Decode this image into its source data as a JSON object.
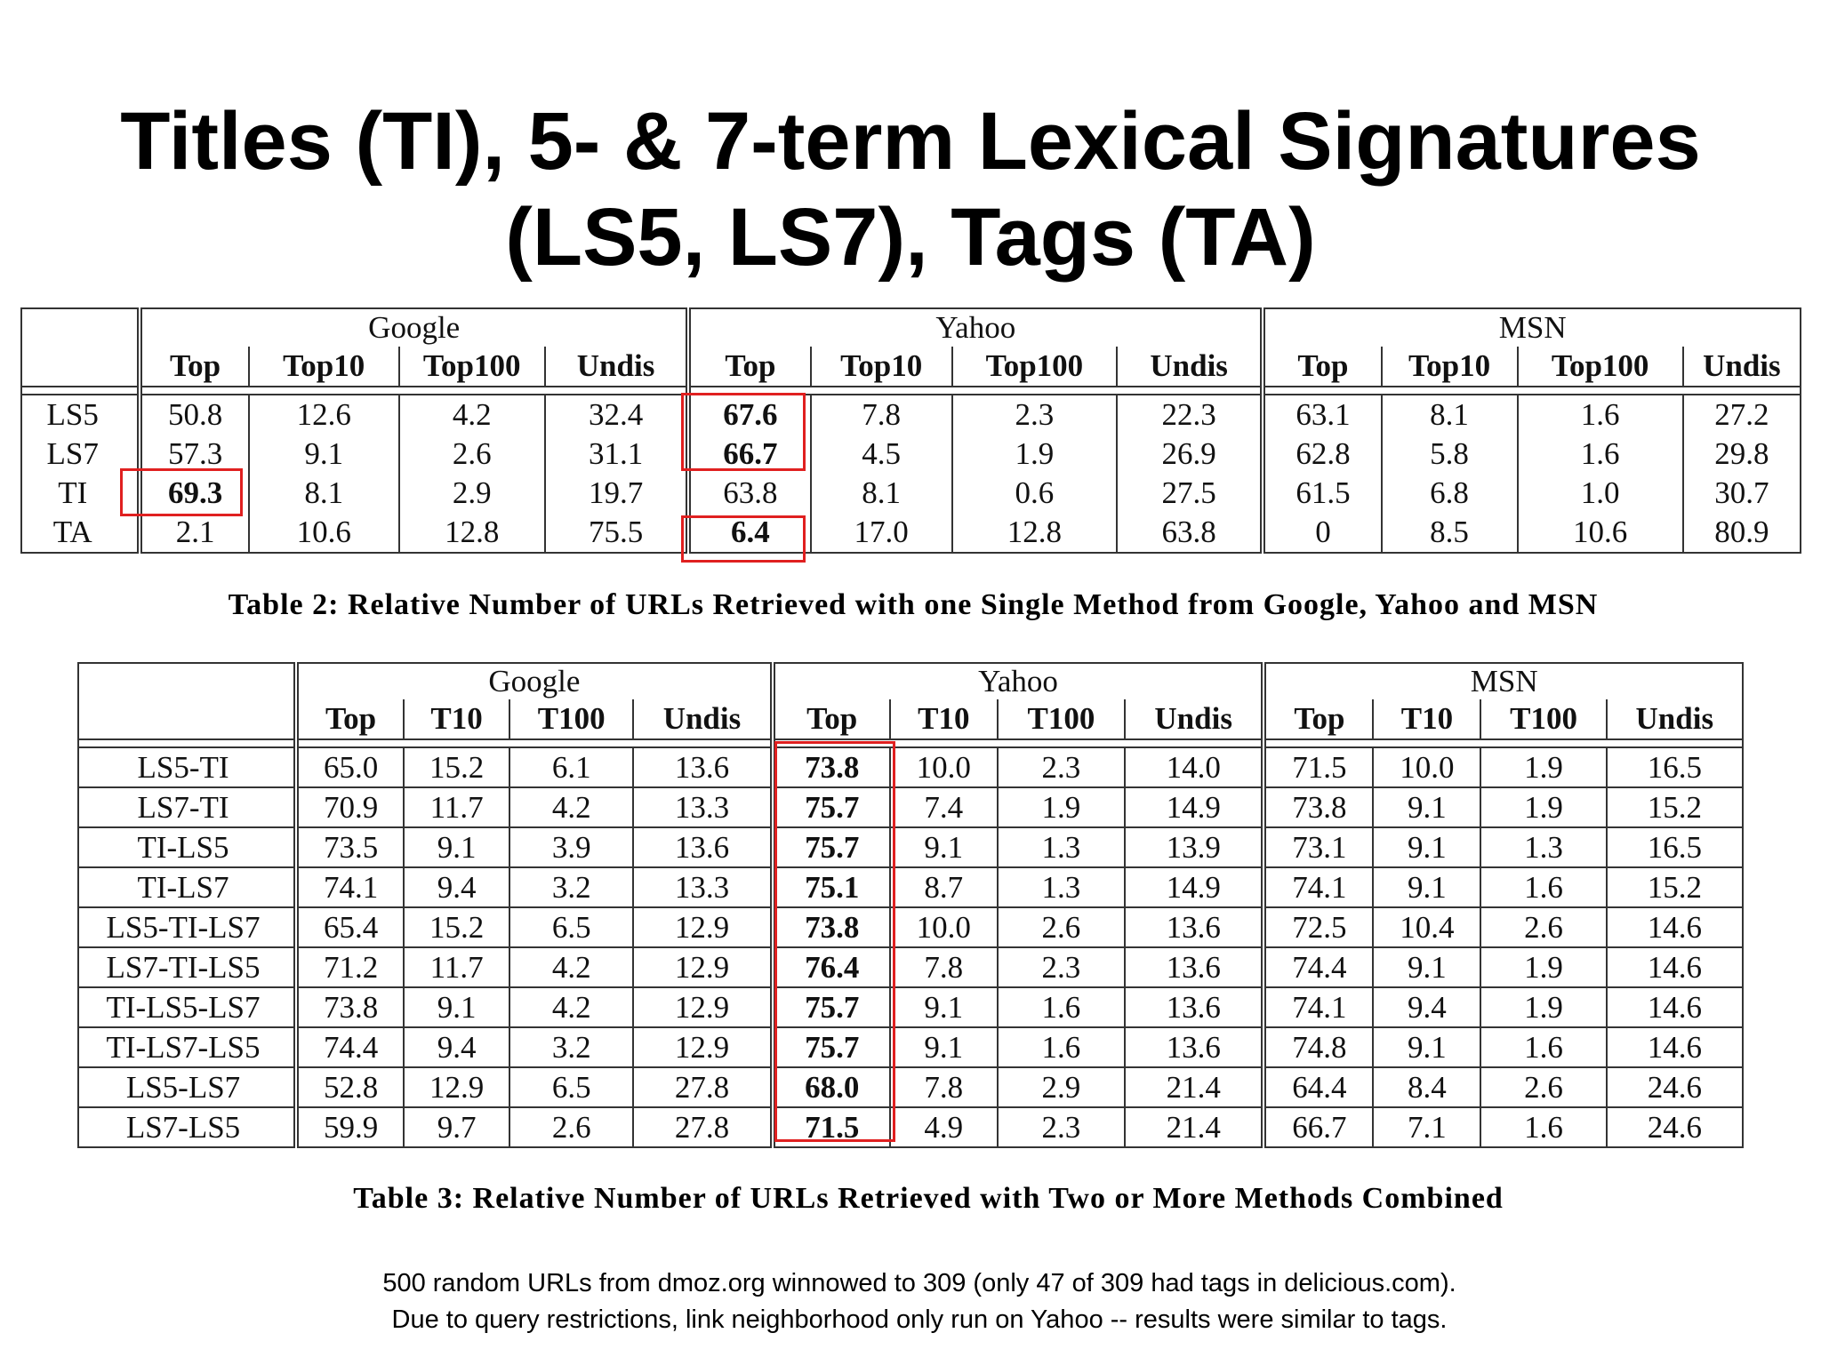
{
  "title": {
    "line1": "Titles (TI), 5- & 7-term Lexical Signatures",
    "line2": "(LS5, LS7), Tags (TA)"
  },
  "table2": {
    "engines": [
      "Google",
      "Yahoo",
      "MSN"
    ],
    "columns": [
      "Top",
      "Top10",
      "Top100",
      "Undis"
    ],
    "rows": [
      {
        "label": "LS5",
        "values": [
          "50.8",
          "12.6",
          "4.2",
          "32.4",
          "67.6",
          "7.8",
          "2.3",
          "22.3",
          "63.1",
          "8.1",
          "1.6",
          "27.2"
        ]
      },
      {
        "label": "LS7",
        "values": [
          "57.3",
          "9.1",
          "2.6",
          "31.1",
          "66.7",
          "4.5",
          "1.9",
          "26.9",
          "62.8",
          "5.8",
          "1.6",
          "29.8"
        ]
      },
      {
        "label": "TI",
        "values": [
          "69.3",
          "8.1",
          "2.9",
          "19.7",
          "63.8",
          "8.1",
          "0.6",
          "27.5",
          "61.5",
          "6.8",
          "1.0",
          "30.7"
        ]
      },
      {
        "label": "TA",
        "values": [
          "2.1",
          "10.6",
          "12.8",
          "75.5",
          "6.4",
          "17.0",
          "12.8",
          "63.8",
          "0",
          "8.5",
          "10.6",
          "80.9"
        ]
      }
    ],
    "caption": "Table 2: Relative Number of URLs Retrieved with one Single Method from Google, Yahoo and MSN"
  },
  "table3": {
    "engines": [
      "Google",
      "Yahoo",
      "MSN"
    ],
    "columns": [
      "Top",
      "T10",
      "T100",
      "Undis"
    ],
    "rows": [
      {
        "label": "LS5-TI",
        "values": [
          "65.0",
          "15.2",
          "6.1",
          "13.6",
          "73.8",
          "10.0",
          "2.3",
          "14.0",
          "71.5",
          "10.0",
          "1.9",
          "16.5"
        ]
      },
      {
        "label": "LS7-TI",
        "values": [
          "70.9",
          "11.7",
          "4.2",
          "13.3",
          "75.7",
          "7.4",
          "1.9",
          "14.9",
          "73.8",
          "9.1",
          "1.9",
          "15.2"
        ]
      },
      {
        "label": "TI-LS5",
        "values": [
          "73.5",
          "9.1",
          "3.9",
          "13.6",
          "75.7",
          "9.1",
          "1.3",
          "13.9",
          "73.1",
          "9.1",
          "1.3",
          "16.5"
        ]
      },
      {
        "label": "TI-LS7",
        "values": [
          "74.1",
          "9.4",
          "3.2",
          "13.3",
          "75.1",
          "8.7",
          "1.3",
          "14.9",
          "74.1",
          "9.1",
          "1.6",
          "15.2"
        ]
      },
      {
        "label": "LS5-TI-LS7",
        "values": [
          "65.4",
          "15.2",
          "6.5",
          "12.9",
          "73.8",
          "10.0",
          "2.6",
          "13.6",
          "72.5",
          "10.4",
          "2.6",
          "14.6"
        ]
      },
      {
        "label": "LS7-TI-LS5",
        "values": [
          "71.2",
          "11.7",
          "4.2",
          "12.9",
          "76.4",
          "7.8",
          "2.3",
          "13.6",
          "74.4",
          "9.1",
          "1.9",
          "14.6"
        ]
      },
      {
        "label": "TI-LS5-LS7",
        "values": [
          "73.8",
          "9.1",
          "4.2",
          "12.9",
          "75.7",
          "9.1",
          "1.6",
          "13.6",
          "74.1",
          "9.4",
          "1.9",
          "14.6"
        ]
      },
      {
        "label": "TI-LS7-LS5",
        "values": [
          "74.4",
          "9.4",
          "3.2",
          "12.9",
          "75.7",
          "9.1",
          "1.6",
          "13.6",
          "74.8",
          "9.1",
          "1.6",
          "14.6"
        ]
      },
      {
        "label": "LS5-LS7",
        "values": [
          "52.8",
          "12.9",
          "6.5",
          "27.8",
          "68.0",
          "7.8",
          "2.9",
          "21.4",
          "64.4",
          "8.4",
          "2.6",
          "24.6"
        ]
      },
      {
        "label": "LS7-LS5",
        "values": [
          "59.9",
          "9.7",
          "2.6",
          "27.8",
          "71.5",
          "4.9",
          "2.3",
          "21.4",
          "66.7",
          "7.1",
          "1.6",
          "24.6"
        ]
      }
    ],
    "caption": "Table 3: Relative Number of URLs Retrieved with Two or More Methods Combined"
  },
  "footnote": {
    "line1": "500 random URLs from dmoz.org winnowed to 309 (only 47 of 309 had tags in delicious.com).",
    "line2": "Due to query restrictions, link neighborhood only run on Yahoo -- results were similar to tags."
  }
}
